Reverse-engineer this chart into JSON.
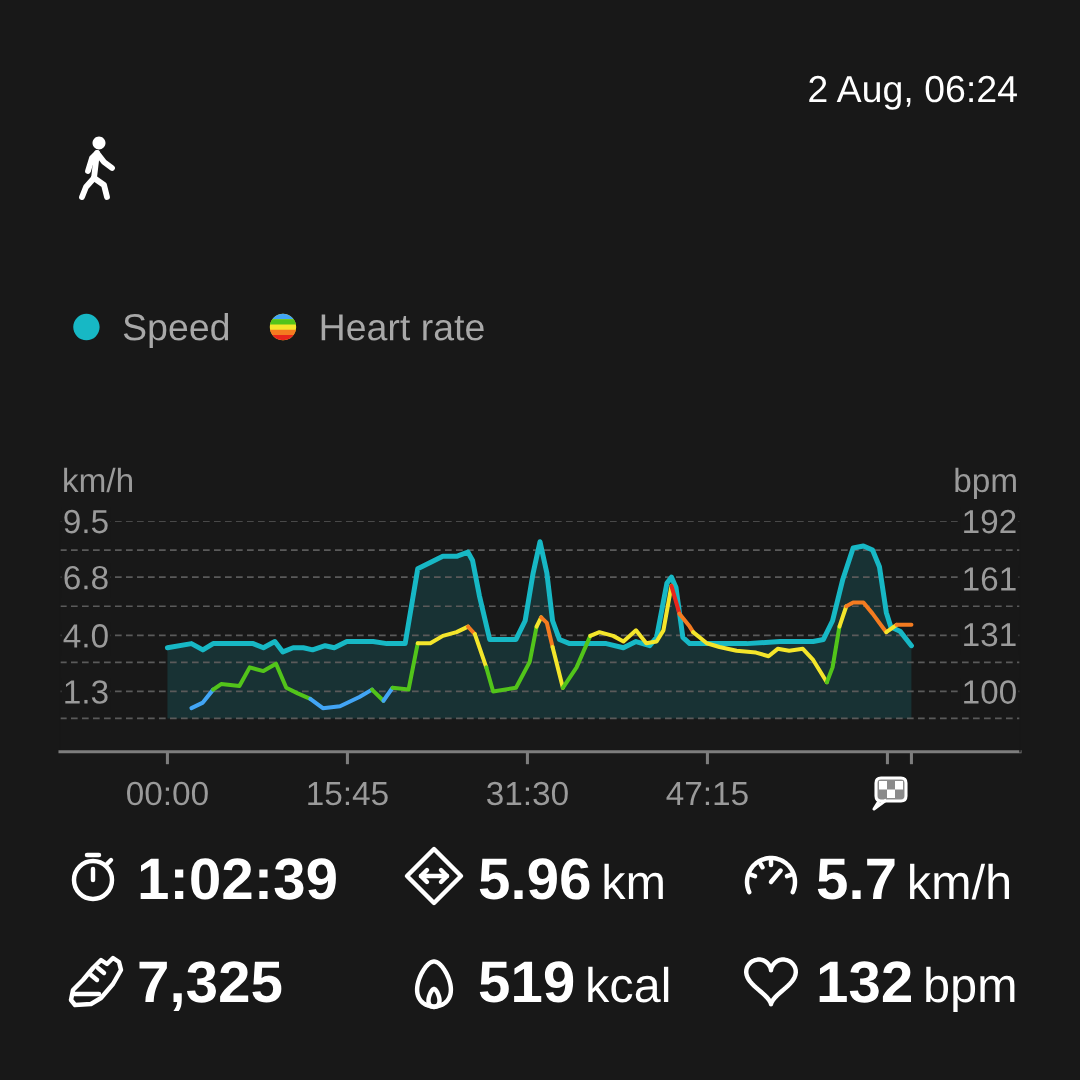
{
  "chart_data": {
    "type": "area",
    "ylabel": "km/h",
    "y2label": "bpm",
    "legend": "top left",
    "grid": "y",
    "xlim": [
      -9.4,
      74.6
    ],
    "xticks": [
      {
        "value": 0,
        "label": "00:00"
      },
      {
        "value": 15.75,
        "label": "15:45"
      },
      {
        "value": 31.5,
        "label": "31:30"
      },
      {
        "value": 47.25,
        "label": "47:15"
      },
      {
        "value": 63.0,
        "label": null
      },
      {
        "value": 65.1,
        "label": null
      }
    ],
    "ylim": [
      -1.6,
      9.5
    ],
    "yticks": [
      {
        "value": 0,
        "label": null
      },
      1.3,
      {
        "value": 2.7,
        "label": null
      },
      {
        "value": 4.0,
        "label": "4.0"
      },
      {
        "value": 5.4,
        "label": null
      },
      6.8,
      {
        "value": 8.1,
        "label": null
      },
      9.5
    ],
    "y2lim": [
      67.5,
      192
    ],
    "y2ticks": [
      100,
      131,
      161,
      192
    ],
    "series": [
      {
        "name": "Speed",
        "color": "#17b8c5",
        "x": [
          0.0,
          2.1,
          3.1,
          4.0,
          5.2,
          7.5,
          8.4,
          9.4,
          10.1,
          11.0,
          11.9,
          12.7,
          13.8,
          14.6,
          15.7,
          18.0,
          19.2,
          20.8,
          21.9,
          23.0,
          24.1,
          25.3,
          26.3,
          26.7,
          27.3,
          28.2,
          29.1,
          30.5,
          31.3,
          32.0,
          32.6,
          33.2,
          33.7,
          34.3,
          35.2,
          36.4,
          37.5,
          38.4,
          39.9,
          41.0,
          42.2,
          42.8,
          43.7,
          44.1,
          44.5,
          45.1,
          45.7,
          47.7,
          50.7,
          53.6,
          56.5,
          57.4,
          58.2,
          59.1,
          60.0,
          60.9,
          61.7,
          62.3,
          62.9,
          63.3,
          64.1,
          65.1
        ],
        "values": [
          3.4,
          3.6,
          3.3,
          3.6,
          3.6,
          3.6,
          3.4,
          3.7,
          3.2,
          3.4,
          3.4,
          3.3,
          3.5,
          3.4,
          3.7,
          3.7,
          3.6,
          3.6,
          7.2,
          7.5,
          7.8,
          7.8,
          8.0,
          7.6,
          5.9,
          3.8,
          3.8,
          3.8,
          4.7,
          7.0,
          8.5,
          7.0,
          4.7,
          3.8,
          3.6,
          3.6,
          3.6,
          3.6,
          3.4,
          3.7,
          3.5,
          3.9,
          6.5,
          6.8,
          6.3,
          3.9,
          3.6,
          3.6,
          3.6,
          3.7,
          3.7,
          3.8,
          4.7,
          6.7,
          8.2,
          8.3,
          8.1,
          7.3,
          5.1,
          4.4,
          4.2,
          3.5
        ]
      },
      {
        "type": "line",
        "axis": "y2",
        "color": "#42a5f5",
        "x": [
          2.1,
          3.1,
          4.0
        ],
        "values": [
          91,
          94,
          101
        ]
      },
      {
        "type": "line",
        "axis": "y2",
        "color": "#52c41a",
        "x": [
          4.0,
          4.7,
          6.3,
          7.2,
          8.4,
          9.5,
          10.4,
          11.4,
          12.5
        ],
        "values": [
          101,
          104,
          103,
          113,
          111,
          115,
          102,
          99,
          96
        ]
      },
      {
        "type": "line",
        "axis": "y2",
        "color": "#42a5f5",
        "x": [
          12.5,
          13.6,
          15.1,
          16.8,
          17.9
        ],
        "values": [
          96,
          91,
          92,
          97,
          101
        ]
      },
      {
        "type": "line",
        "axis": "y2",
        "color": "#52c41a",
        "x": [
          17.9,
          18.9
        ],
        "values": [
          101,
          95
        ]
      },
      {
        "type": "line",
        "axis": "y2",
        "color": "#42a5f5",
        "x": [
          18.9,
          19.7
        ],
        "values": [
          95,
          102
        ]
      },
      {
        "type": "line",
        "axis": "y2",
        "color": "#52c41a",
        "x": [
          19.7,
          21.1,
          21.9
        ],
        "values": [
          102,
          101,
          126
        ]
      },
      {
        "name": "Heart rate",
        "type": "line",
        "axis": "y2",
        "color": "#f4e52b",
        "x": [
          21.9,
          23.0,
          24.1,
          25.3,
          26.3
        ],
        "values": [
          126,
          126,
          130,
          132,
          135
        ]
      },
      {
        "type": "line",
        "axis": "y2",
        "color": "#f47b20",
        "x": [
          26.3,
          26.9
        ],
        "values": [
          135,
          131
        ]
      },
      {
        "type": "line",
        "axis": "y2",
        "color": "#f4e52b",
        "x": [
          26.9,
          27.9
        ],
        "values": [
          131,
          113
        ]
      },
      {
        "type": "line",
        "axis": "y2",
        "color": "#52c41a",
        "x": [
          27.9,
          28.5,
          30.5,
          31.7,
          32.3
        ],
        "values": [
          113,
          100,
          102,
          116,
          135
        ]
      },
      {
        "type": "line",
        "axis": "y2",
        "color": "#f4e52b",
        "x": [
          32.3,
          32.7
        ],
        "values": [
          135,
          140
        ]
      },
      {
        "type": "line",
        "axis": "y2",
        "color": "#f47b20",
        "x": [
          32.7,
          33.2,
          33.7
        ],
        "values": [
          140,
          137,
          124
        ]
      },
      {
        "type": "line",
        "axis": "y2",
        "color": "#f4e52b",
        "x": [
          33.7,
          34.6
        ],
        "values": [
          124,
          102
        ]
      },
      {
        "type": "line",
        "axis": "y2",
        "color": "#52c41a",
        "x": [
          34.6,
          35.8,
          37.0
        ],
        "values": [
          102,
          113,
          130
        ]
      },
      {
        "type": "line",
        "axis": "y2",
        "color": "#f4e52b",
        "x": [
          37.0,
          37.8,
          39.0,
          39.9,
          41.0,
          41.9,
          42.8,
          43.4,
          44.1
        ],
        "values": [
          130,
          132,
          130,
          127,
          133,
          126,
          127,
          133,
          157
        ]
      },
      {
        "type": "line",
        "axis": "y2",
        "color": "#e8261c",
        "x": [
          44.1,
          44.8
        ],
        "values": [
          157,
          142
        ]
      },
      {
        "type": "line",
        "axis": "y2",
        "color": "#f47b20",
        "x": [
          44.8,
          45.7,
          46.0
        ],
        "values": [
          142,
          135,
          132
        ]
      },
      {
        "type": "line",
        "axis": "y2",
        "color": "#f4e52b",
        "x": [
          46.0,
          47.2,
          48.3,
          49.8,
          51.5,
          52.6,
          53.4,
          54.4,
          55.6,
          56.5,
          57.7
        ],
        "values": [
          132,
          126,
          124,
          122,
          121,
          119,
          123,
          122,
          123,
          117,
          105
        ]
      },
      {
        "type": "line",
        "axis": "y2",
        "color": "#52c41a",
        "x": [
          57.7,
          58.2,
          58.8
        ],
        "values": [
          105,
          113,
          135
        ]
      },
      {
        "type": "line",
        "axis": "y2",
        "color": "#f4e52b",
        "x": [
          58.8,
          59.4
        ],
        "values": [
          135,
          146
        ]
      },
      {
        "type": "line",
        "axis": "y2",
        "color": "#f47b20",
        "x": [
          59.4,
          60.0,
          60.9,
          61.7,
          62.9
        ],
        "values": [
          146,
          148,
          148,
          142,
          132
        ]
      },
      {
        "type": "line",
        "axis": "y2",
        "color": "#f4e52b",
        "x": [
          62.9,
          63.8
        ],
        "values": [
          132,
          136
        ]
      },
      {
        "type": "line",
        "axis": "y2",
        "color": "#f47b20",
        "x": [
          63.8,
          65.1
        ],
        "values": [
          136,
          136
        ]
      }
    ],
    "annotations": [
      "2 Aug, 06:24",
      "1:02:39",
      "5.96 km",
      "5.7 km/h",
      "7,325",
      "519 kcal",
      "132 bpm"
    ]
  }
}
